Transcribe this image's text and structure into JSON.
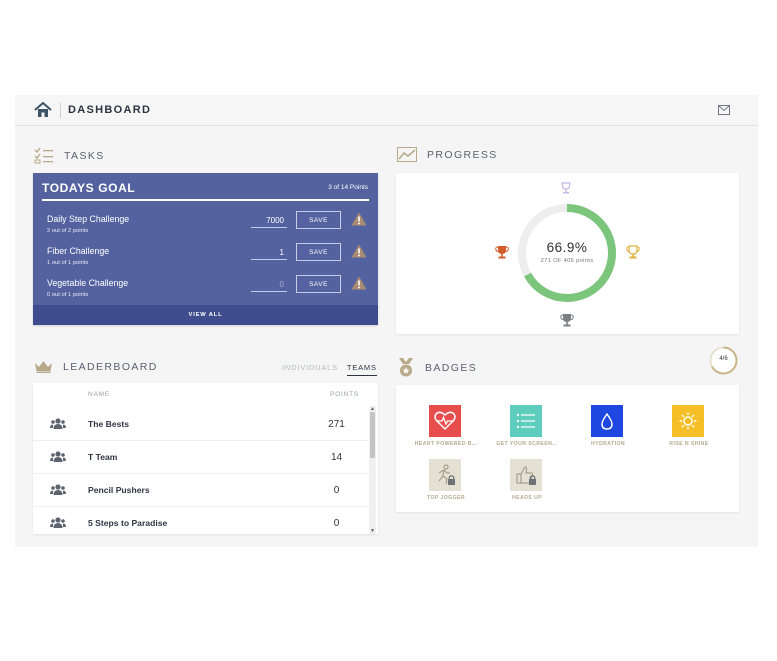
{
  "topbar": {
    "title": "DASHBOARD"
  },
  "tasks": {
    "title": "TASKS",
    "goal_title": "TODAYS GOAL",
    "goal_points": "3 of 14 Points",
    "items": [
      {
        "name": "Daily Step Challenge",
        "sub": "2 out of 2 points",
        "value": "7000",
        "placeholder": "",
        "save": "SAVE"
      },
      {
        "name": "Fiber Challenge",
        "sub": "1 out of 1 points",
        "value": "1",
        "placeholder": "",
        "save": "SAVE"
      },
      {
        "name": "Vegetable Challenge",
        "sub": "0 out of 1 points",
        "value": "",
        "placeholder": "0",
        "save": "SAVE"
      }
    ],
    "view_all": "VIEW ALL"
  },
  "progress": {
    "title": "PROGRESS",
    "percent_label": "66.9%",
    "percent_value": 0.669,
    "sub": "271 OF 405 points",
    "colors": {
      "ring": "#7cc57d",
      "track": "#eeeeee"
    }
  },
  "leaderboard": {
    "title": "LEADERBOARD",
    "tabs": [
      {
        "label": "INDIVIDUALS",
        "active": false
      },
      {
        "label": "TEAMS",
        "active": true
      }
    ],
    "col_name": "NAME",
    "col_points": "POINTS",
    "rows": [
      {
        "name": "The Bests",
        "points": "271"
      },
      {
        "name": "T Team",
        "points": "14"
      },
      {
        "name": "Pencil Pushers",
        "points": "0"
      },
      {
        "name": "5 Steps to Paradise",
        "points": "0"
      }
    ]
  },
  "badges": {
    "title": "BADGES",
    "count": "4/6",
    "items": [
      {
        "label": "HEART POWERED B...",
        "icon": "heart-pulse-icon",
        "color": "#e84d4d",
        "locked": false
      },
      {
        "label": "GET YOUR SCREEN...",
        "icon": "list-icon",
        "color": "#5fcdbd",
        "locked": false
      },
      {
        "label": "HYDRATION",
        "icon": "water-drop-icon",
        "color": "#1d47e0",
        "locked": false
      },
      {
        "label": "RISE N SHINE",
        "icon": "sun-icon",
        "color": "#f6bf27",
        "locked": false
      },
      {
        "label": "TOP JOGGER",
        "icon": "runner-icon",
        "color": "#e5e0d4",
        "locked": true
      },
      {
        "label": "HEADS UP",
        "icon": "thumbs-up-icon",
        "color": "#e5e0d4",
        "locked": true
      }
    ]
  }
}
